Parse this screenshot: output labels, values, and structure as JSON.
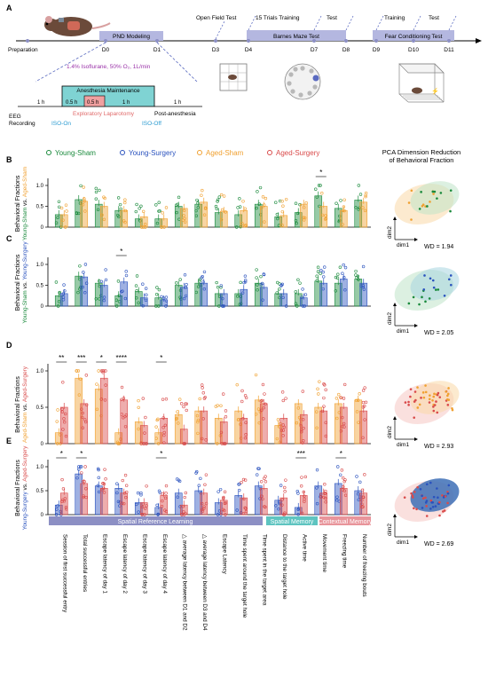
{
  "panel_labels": [
    "A",
    "B",
    "C",
    "D",
    "E"
  ],
  "timeline": {
    "prep_label": "Preparation",
    "days": [
      "D0",
      "D1",
      "D3",
      "D4",
      "D7",
      "D8",
      "D9",
      "D10",
      "D11"
    ],
    "boxes": {
      "pnd": "PND Modeling",
      "barnes": "Barnes Maze Test",
      "fear": "Fear Conditioning Test"
    },
    "top_labels": {
      "open_field": "Open Field Test",
      "trials": "15 Trials Training",
      "test1": "Test",
      "training": "Training",
      "test2": "Test"
    }
  },
  "anesthesia": {
    "agent": "1.4% Isoflurane, 50% O₂, 1L/min",
    "maintenance": "Anesthesia Maintenance",
    "h1": "1 h",
    "h05a": "0.5 h",
    "h05b": "0.5 h",
    "h1b": "1 h",
    "h1c": "1 h",
    "laparotomy": "Exploratory Laparotomy",
    "post": "Post-anesthesia",
    "eeg1": "EEG",
    "eeg2": "Recording",
    "iso_on": "ISO-On",
    "iso_off": "ISO-Off"
  },
  "legend": {
    "young_sham": "Young-Sham",
    "young_surgery": "Young-Surgery",
    "aged_sham": "Aged-Sham",
    "aged_surgery": "Aged-Surgery"
  },
  "pca": {
    "title1": "PCA Dimension Reduction",
    "title2": "of Behavioral Fraction",
    "dim1": "dim1",
    "dim2": "dim2",
    "wd": [
      "WD = 1.94",
      "WD = 2.05",
      "WD = 2.93",
      "WD = 2.69"
    ]
  },
  "ylabel": {
    "main": "Behavioral Fractions",
    "B": [
      "Young-Sham",
      " vs. ",
      "Aged-Sham"
    ],
    "C": [
      "Young-Sham",
      " vs. ",
      "Young-Surgery"
    ],
    "D": [
      "Aged-Sham",
      " vs. ",
      "Aged-Surgery"
    ],
    "E": [
      "Young-Surgery",
      " vs. ",
      "Aged-Surgery"
    ]
  },
  "categories": {
    "spatial_ref": "Spatial Reference Learning",
    "spatial_mem": "Spatial Memory",
    "contextual": "Contextual Memory"
  },
  "xlabels": [
    "Session of first successful entry",
    "Total successful entries",
    "Escape latency of day 1",
    "Escape latency of day 2",
    "Escape latency of day 3",
    "Escape latency of day 4",
    "△ average latency between D1 and D2",
    "△ average latency between D3 and D4",
    "Escape Latency",
    "Time spent around the target hole",
    "Time spent in the target area",
    "Distance to the target hole",
    "Active time",
    "Movement time",
    "Freezing time",
    "Number of freezing bouts"
  ],
  "colors": {
    "young_sham": "#1a8a3c",
    "young_surgery": "#2a52be",
    "aged_sham": "#f0a030",
    "aged_surgery": "#d94a4a",
    "cat_spatial_ref": "#8c8fc4",
    "cat_spatial_mem": "#5ec4c0",
    "cat_contextual": "#e8949a"
  },
  "chart_data": [
    {
      "type": "bar",
      "panel": "B",
      "ylim": [
        0,
        1
      ],
      "ticks": [
        "0",
        "0.5",
        "1.0"
      ],
      "categories": [
        "Session of first successful entry",
        "Total successful entries",
        "Escape latency of day 1",
        "Escape latency of day 2",
        "Escape latency of day 3",
        "Escape latency of day 4",
        "△ average latency between D1 and D2",
        "△ average latency between D3 and D4",
        "Escape Latency",
        "Time spent around the target hole",
        "Time spent in the target area",
        "Distance to the target hole",
        "Active time",
        "Movement time",
        "Freezing time",
        "Number of freezing bouts"
      ],
      "series": [
        {
          "name": "Young-Sham",
          "values": [
            0.3,
            0.66,
            0.55,
            0.4,
            0.2,
            0.2,
            0.5,
            0.55,
            0.35,
            0.3,
            0.55,
            0.25,
            0.35,
            0.75,
            0.45,
            0.65
          ]
        },
        {
          "name": "Aged-Sham",
          "values": [
            0.3,
            0.62,
            0.5,
            0.4,
            0.25,
            0.2,
            0.45,
            0.6,
            0.38,
            0.4,
            0.5,
            0.28,
            0.55,
            0.5,
            0.4,
            0.6
          ]
        }
      ],
      "significance": [
        "",
        "",
        "",
        "",
        "",
        "",
        "",
        "",
        "",
        "",
        "",
        "",
        "",
        "*",
        "",
        ""
      ]
    },
    {
      "type": "bar",
      "panel": "C",
      "ylim": [
        0,
        1
      ],
      "ticks": [
        "0",
        "0.5",
        "1.0"
      ],
      "categories": [
        "Session of first successful entry",
        "Total successful entries",
        "Escape latency of day 1",
        "Escape latency of day 2",
        "Escape latency of day 3",
        "Escape latency of day 4",
        "△ average latency between D1 and D2",
        "△ average latency between D3 and D4",
        "Escape Latency",
        "Time spent around the target hole",
        "Time spent in the target area",
        "Distance to the target hole",
        "Active time",
        "Movement time",
        "Freezing time",
        "Number of freezing bouts"
      ],
      "series": [
        {
          "name": "Young-Sham",
          "values": [
            0.25,
            0.72,
            0.55,
            0.25,
            0.35,
            0.2,
            0.5,
            0.55,
            0.3,
            0.3,
            0.55,
            0.3,
            0.3,
            0.6,
            0.55,
            0.65
          ]
        },
        {
          "name": "Young-Surgery",
          "values": [
            0.3,
            0.7,
            0.5,
            0.58,
            0.2,
            0.15,
            0.45,
            0.55,
            0.3,
            0.4,
            0.45,
            0.3,
            0.2,
            0.55,
            0.65,
            0.55
          ]
        }
      ],
      "significance": [
        "",
        "",
        "",
        "*",
        "",
        "",
        "",
        "",
        "",
        "",
        "",
        "",
        "",
        "",
        "",
        ""
      ]
    },
    {
      "type": "bar",
      "panel": "D",
      "ylim": [
        0,
        1
      ],
      "ticks": [
        "0",
        "0.5",
        "1.0"
      ],
      "categories": [
        "Session of first successful entry",
        "Total successful entries",
        "Escape latency of day 1",
        "Escape latency of day 2",
        "Escape latency of day 3",
        "Escape latency of day 4",
        "△ average latency between D1 and D2",
        "△ average latency between D3 and D4",
        "Escape Latency",
        "Time spent around the target hole",
        "Time spent in the target area",
        "Distance to the target hole",
        "Active time",
        "Movement time",
        "Freezing time",
        "Number of freezing bouts"
      ],
      "series": [
        {
          "name": "Aged-Sham",
          "values": [
            0.15,
            0.9,
            0.75,
            0.15,
            0.3,
            0.15,
            0.4,
            0.45,
            0.35,
            0.45,
            0.6,
            0.25,
            0.55,
            0.5,
            0.55,
            0.6
          ]
        },
        {
          "name": "Aged-Surgery",
          "values": [
            0.5,
            0.55,
            0.9,
            0.6,
            0.25,
            0.35,
            0.2,
            0.45,
            0.3,
            0.35,
            0.55,
            0.35,
            0.4,
            0.45,
            0.5,
            0.45
          ]
        }
      ],
      "significance": [
        "**",
        "***",
        "*",
        "****",
        "",
        "*",
        "",
        "",
        "",
        "",
        "",
        "",
        "",
        "",
        "",
        ""
      ]
    },
    {
      "type": "bar",
      "panel": "E",
      "ylim": [
        0,
        1
      ],
      "ticks": [
        "0",
        "0.5",
        "1.0"
      ],
      "categories": [
        "Session of first successful entry",
        "Total successful entries",
        "Escape latency of day 1",
        "Escape latency of day 2",
        "Escape latency of day 3",
        "Escape latency of day 4",
        "△ average latency between D1 and D2",
        "△ average latency between D3 and D4",
        "Escape Latency",
        "Time spent around the target hole",
        "Time spent in the target area",
        "Distance to the target hole",
        "Active time",
        "Movement time",
        "Freezing time",
        "Number of freezing bouts"
      ],
      "series": [
        {
          "name": "Young-Surgery",
          "values": [
            0.2,
            0.85,
            0.6,
            0.55,
            0.25,
            0.15,
            0.45,
            0.5,
            0.25,
            0.4,
            0.6,
            0.3,
            0.15,
            0.6,
            0.65,
            0.5
          ]
        },
        {
          "name": "Aged-Surgery",
          "values": [
            0.45,
            0.65,
            0.55,
            0.45,
            0.25,
            0.4,
            0.2,
            0.45,
            0.3,
            0.35,
            0.55,
            0.35,
            0.4,
            0.45,
            0.55,
            0.45
          ]
        }
      ],
      "significance": [
        "*",
        "*",
        "",
        "",
        "",
        "*",
        "",
        "",
        "",
        "",
        "",
        "",
        "***",
        "",
        "*",
        ""
      ]
    }
  ]
}
